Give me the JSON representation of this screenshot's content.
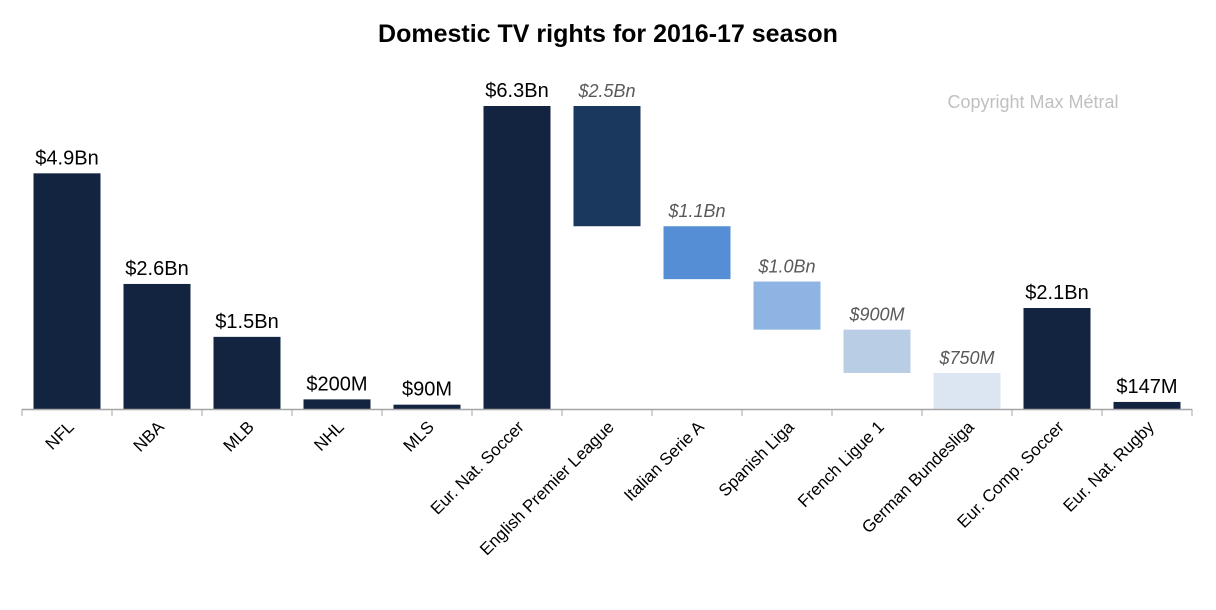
{
  "chart_data": {
    "type": "bar",
    "subtype": "waterfall",
    "title": "Domestic TV rights for 2016-17 season",
    "watermark": "Copyright Max Métral",
    "unit": "USD billions",
    "xlabel": "",
    "ylabel": "",
    "ylim": [
      0,
      6.3
    ],
    "grid": false,
    "categories": [
      "NFL",
      "NBA",
      "MLB",
      "NHL",
      "MLS",
      "Eur. Nat. Soccer",
      "English Premier League",
      "Italian Serie A",
      "Spanish Liga",
      "French Ligue 1",
      "German Bundesliga",
      "Eur. Comp. Soccer",
      "Eur. Nat. Rugby"
    ],
    "bars": [
      {
        "value": 4.9,
        "base": 0,
        "label": "$4.9Bn",
        "kind": "total",
        "color": "#12243f"
      },
      {
        "value": 2.6,
        "base": 0,
        "label": "$2.6Bn",
        "kind": "total",
        "color": "#12243f"
      },
      {
        "value": 1.5,
        "base": 0,
        "label": "$1.5Bn",
        "kind": "total",
        "color": "#12243f"
      },
      {
        "value": 0.2,
        "base": 0,
        "label": "$200M",
        "kind": "total",
        "color": "#12243f"
      },
      {
        "value": 0.09,
        "base": 0,
        "label": "$90M",
        "kind": "total",
        "color": "#12243f"
      },
      {
        "value": 6.3,
        "base": 0,
        "label": "$6.3Bn",
        "kind": "total",
        "color": "#12243f"
      },
      {
        "value": 2.5,
        "base": 3.8,
        "label": "$2.5Bn",
        "kind": "component",
        "color": "#1a375e"
      },
      {
        "value": 1.1,
        "base": 2.7,
        "label": "$1.1Bn",
        "kind": "component",
        "color": "#558ed5"
      },
      {
        "value": 1.0,
        "base": 1.65,
        "label": "$1.0Bn",
        "kind": "component",
        "color": "#8db4e2"
      },
      {
        "value": 0.9,
        "base": 0.75,
        "label": "$900M",
        "kind": "component",
        "color": "#b9cde5"
      },
      {
        "value": 0.75,
        "base": 0,
        "label": "$750M",
        "kind": "component",
        "color": "#dce6f2"
      },
      {
        "value": 2.1,
        "base": 0,
        "label": "$2.1Bn",
        "kind": "total",
        "color": "#12243f"
      },
      {
        "value": 0.147,
        "base": 0,
        "label": "$147M",
        "kind": "total",
        "color": "#12243f"
      }
    ]
  }
}
